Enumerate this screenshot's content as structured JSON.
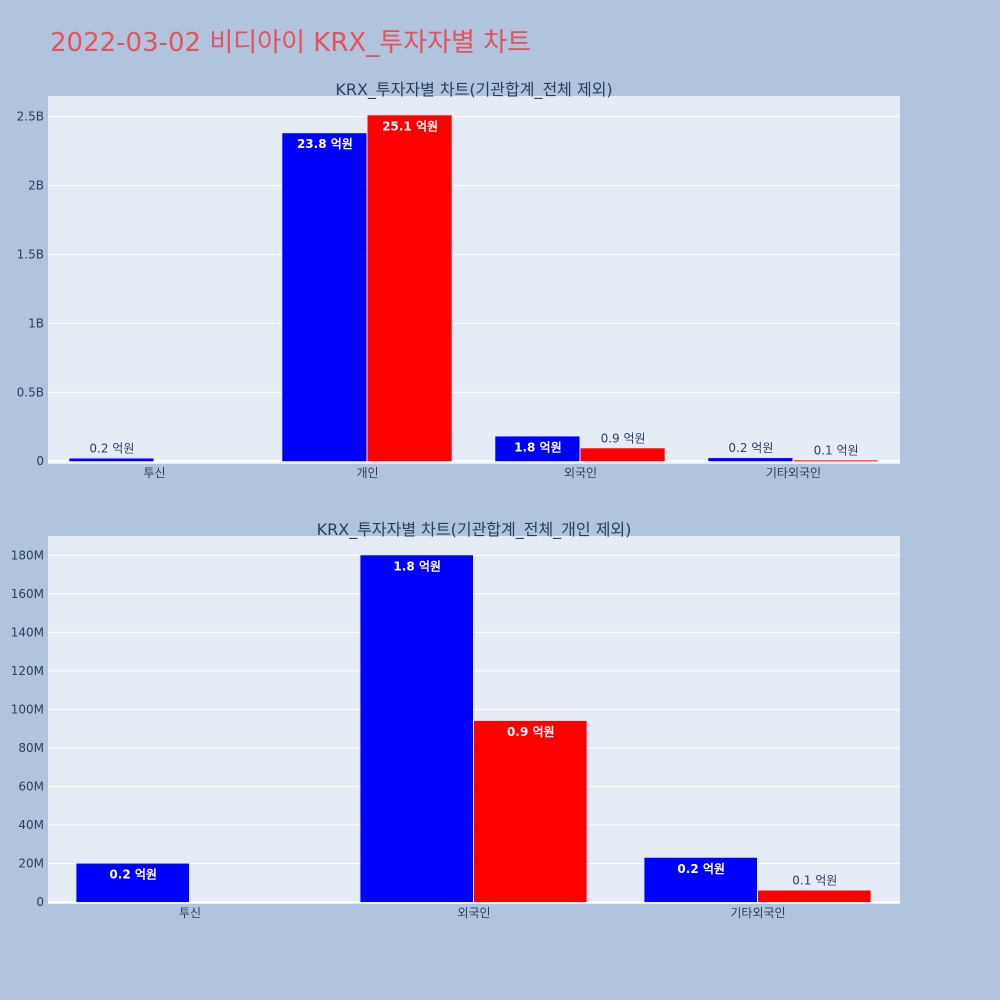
{
  "page_title": "2022-03-02 비디아이 KRX_투자자별 차트",
  "colors": {
    "buy": "#0000ff",
    "sell": "#ff0000",
    "plot_bg": "#e5ecf6",
    "page_bg": "#b0c4de",
    "title": "#e8505b"
  },
  "chart_data": [
    {
      "type": "bar",
      "title": "KRX_투자자별 차트(기관합계_전체 제외)",
      "categories": [
        "투신",
        "개인",
        "외국인",
        "기타외국인"
      ],
      "series": [
        {
          "color": "#0000ff",
          "values": [
            20000000,
            2380000000,
            180000000,
            23000000
          ],
          "labels": [
            "0.2 억원",
            "23.8 억원",
            "1.8 억원",
            "0.2 억원"
          ]
        },
        {
          "color": "#ff0000",
          "values": [
            null,
            2510000000,
            94000000,
            6000000
          ],
          "labels": [
            "",
            "25.1 억원",
            "0.9 억원",
            "0.1 억원"
          ]
        }
      ],
      "ylim": [
        -20000000,
        2650000000
      ],
      "yticks": [
        0,
        500000000,
        1000000000,
        1500000000,
        2000000000,
        2500000000
      ],
      "ytick_labels": [
        "0",
        "0.5B",
        "1B",
        "1.5B",
        "2B",
        "2.5B"
      ],
      "grid": true
    },
    {
      "type": "bar",
      "title": "KRX_투자자별 차트(기관합계_전체_개인 제외)",
      "categories": [
        "투신",
        "외국인",
        "기타외국인"
      ],
      "series": [
        {
          "color": "#0000ff",
          "values": [
            20000000,
            180000000,
            23000000
          ],
          "labels": [
            "0.2 억원",
            "1.8 억원",
            "0.2 억원"
          ]
        },
        {
          "color": "#ff0000",
          "values": [
            null,
            94000000,
            6000000
          ],
          "labels": [
            "",
            "0.9 억원",
            "0.1 억원"
          ]
        }
      ],
      "ylim": [
        -1000000,
        190000000
      ],
      "yticks": [
        0,
        20000000,
        40000000,
        60000000,
        80000000,
        100000000,
        120000000,
        140000000,
        160000000,
        180000000
      ],
      "ytick_labels": [
        "0",
        "20M",
        "40M",
        "60M",
        "80M",
        "100M",
        "120M",
        "140M",
        "160M",
        "180M"
      ],
      "grid": true
    }
  ]
}
